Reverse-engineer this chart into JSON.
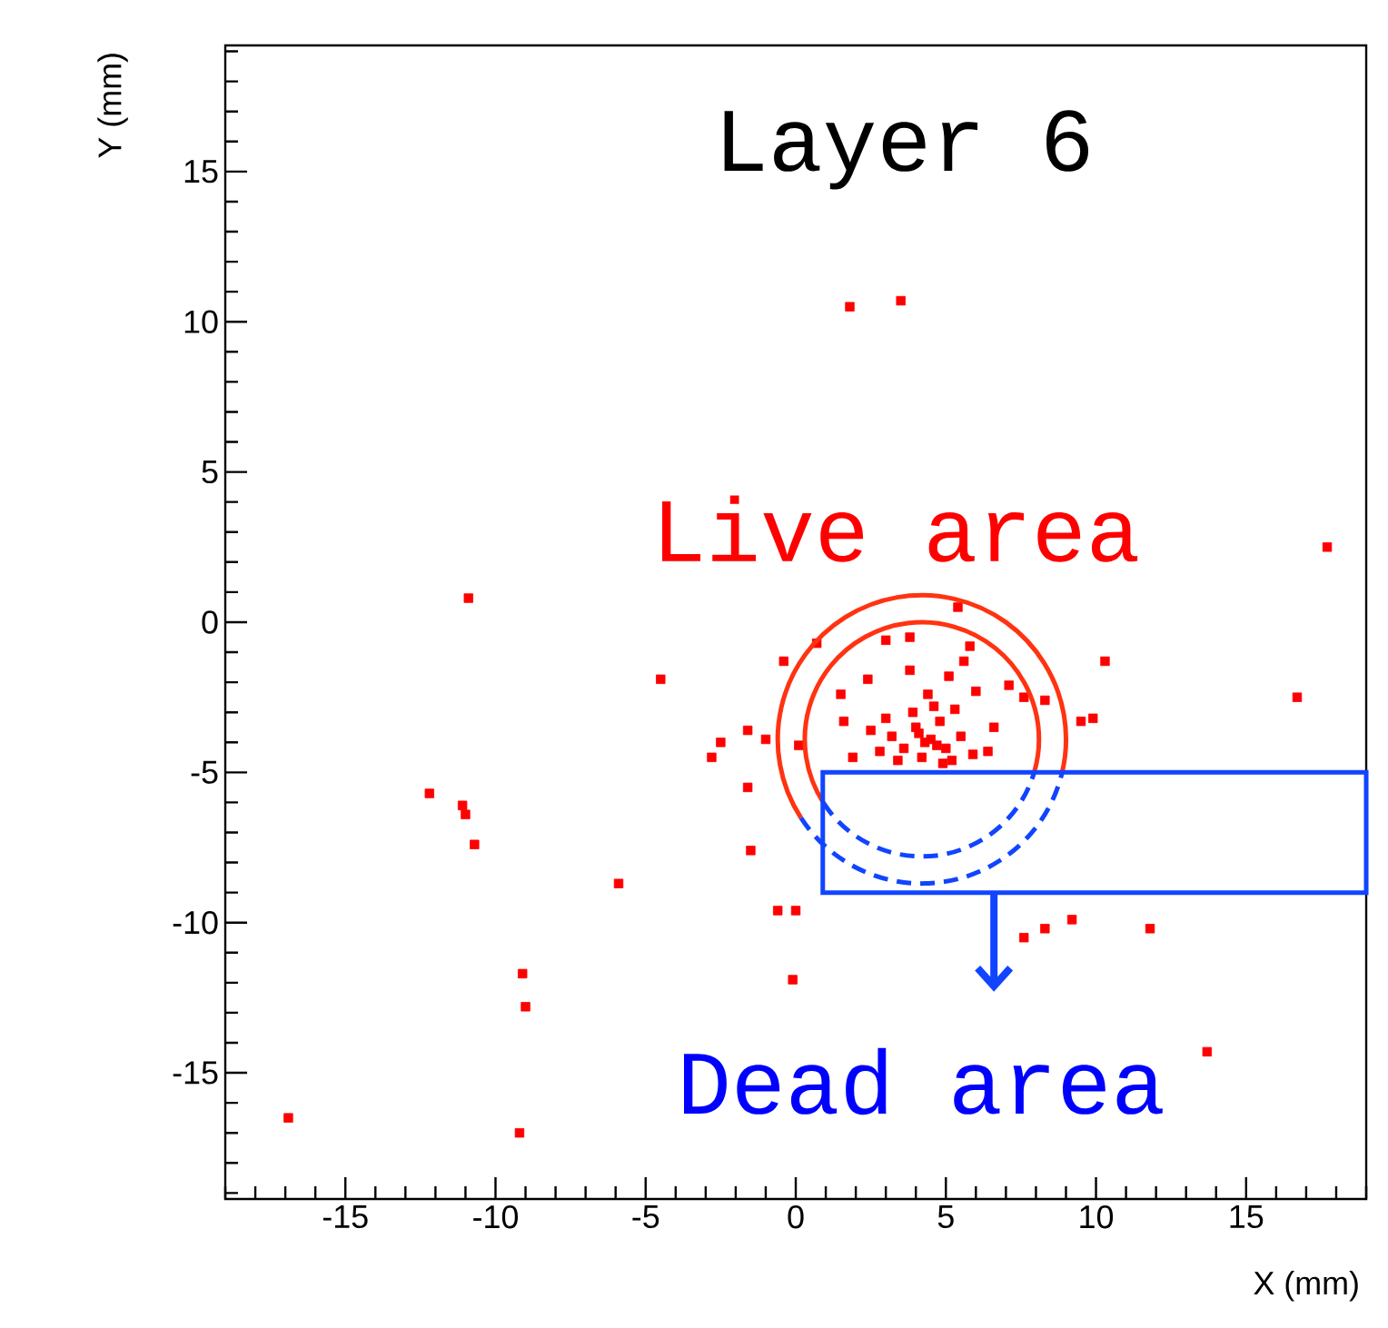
{
  "chart_data": {
    "type": "scatter",
    "title": "Layer 6",
    "xlabel": "X (mm)",
    "ylabel": "Y (mm)",
    "annotations": [
      "Live area",
      "Dead area"
    ],
    "x": [
      -10.9,
      1.8,
      3.5,
      -4.5,
      -12.2,
      -11.1,
      -11.0,
      -10.7,
      -5.9,
      -9.1,
      -9.0,
      -16.9,
      -9.2,
      17.7,
      16.7,
      7.6,
      8.3,
      9.2,
      11.8,
      13.7,
      -0.1,
      -0.6,
      0.0,
      5.4,
      0.7,
      3.0,
      3.8,
      5.8,
      -0.4,
      10.3,
      9.9,
      9.5,
      -2.8,
      -2.5,
      -1.6,
      -1.0,
      -1.6,
      0.1,
      -1.5,
      7.6,
      8.3,
      7.1,
      6.0,
      1.5,
      1.6,
      1.9,
      2.4,
      3.8,
      5.1,
      5.6,
      4.5,
      4.0,
      5.0,
      3.6,
      4.8,
      5.5,
      4.2,
      3.2,
      4.6,
      5.9,
      3.9,
      4.3,
      5.2,
      3.4,
      6.4,
      2.8,
      4.4,
      5.3,
      3.0,
      6.6,
      2.5,
      4.9,
      4.1,
      4.7
    ],
    "values": [
      0.8,
      10.5,
      10.7,
      -1.9,
      -5.7,
      -6.1,
      -6.4,
      -7.4,
      -8.7,
      -11.7,
      -12.8,
      -16.5,
      -17.0,
      2.5,
      -2.5,
      -10.5,
      -10.2,
      -9.9,
      -10.2,
      -14.3,
      -11.9,
      -9.6,
      -9.6,
      0.5,
      -0.7,
      -0.6,
      -0.5,
      -0.8,
      -1.3,
      -1.3,
      -3.2,
      -3.3,
      -4.5,
      -4.0,
      -3.6,
      -3.9,
      -5.5,
      -4.1,
      -7.6,
      -2.5,
      -2.6,
      -2.1,
      -2.3,
      -2.4,
      -3.3,
      -4.5,
      -1.9,
      -1.6,
      -1.8,
      -1.3,
      -3.9,
      -3.5,
      -4.2,
      -4.2,
      -3.3,
      -3.8,
      -4.5,
      -3.8,
      -2.8,
      -4.4,
      -3.0,
      -4.0,
      -4.6,
      -4.6,
      -4.3,
      -4.3,
      -2.4,
      -2.9,
      -3.2,
      -3.5,
      -3.6,
      -4.7,
      -3.7,
      -4.1
    ],
    "color": "#ff0000",
    "marker": "square",
    "grid": false,
    "xlim": [
      -19,
      19
    ],
    "ylim": [
      -19.2,
      19.2
    ],
    "xticks": [
      {
        "value": -19,
        "label": null
      },
      {
        "value": -18,
        "label": null
      },
      {
        "value": -17,
        "label": null
      },
      {
        "value": -16,
        "label": null
      },
      -15,
      {
        "value": -14,
        "label": null
      },
      {
        "value": -13,
        "label": null
      },
      {
        "value": -12,
        "label": null
      },
      {
        "value": -11,
        "label": null
      },
      -10,
      {
        "value": -9,
        "label": null
      },
      {
        "value": -8,
        "label": null
      },
      {
        "value": -7,
        "label": null
      },
      {
        "value": -6,
        "label": null
      },
      -5,
      {
        "value": -4,
        "label": null
      },
      {
        "value": -3,
        "label": null
      },
      {
        "value": -2,
        "label": null
      },
      {
        "value": -1,
        "label": null
      },
      0,
      {
        "value": 1,
        "label": null
      },
      {
        "value": 2,
        "label": null
      },
      {
        "value": 3,
        "label": null
      },
      {
        "value": 4,
        "label": null
      },
      5,
      {
        "value": 6,
        "label": null
      },
      {
        "value": 7,
        "label": null
      },
      {
        "value": 8,
        "label": null
      },
      {
        "value": 9,
        "label": null
      },
      10,
      {
        "value": 11,
        "label": null
      },
      {
        "value": 12,
        "label": null
      },
      {
        "value": 13,
        "label": null
      },
      {
        "value": 14,
        "label": null
      },
      15,
      {
        "value": 16,
        "label": null
      },
      {
        "value": 17,
        "label": null
      },
      {
        "value": 18,
        "label": null
      },
      {
        "value": 19,
        "label": null
      }
    ],
    "yticks": [
      {
        "value": -19,
        "label": null
      },
      {
        "value": -18,
        "label": null
      },
      {
        "value": -17,
        "label": null
      },
      {
        "value": -16,
        "label": null
      },
      -15,
      {
        "value": -14,
        "label": null
      },
      {
        "value": -13,
        "label": null
      },
      {
        "value": -12,
        "label": null
      },
      {
        "value": -11,
        "label": null
      },
      -10,
      {
        "value": -9,
        "label": null
      },
      {
        "value": -8,
        "label": null
      },
      {
        "value": -7,
        "label": null
      },
      {
        "value": -6,
        "label": null
      },
      -5,
      {
        "value": -4,
        "label": null
      },
      {
        "value": -3,
        "label": null
      },
      {
        "value": -2,
        "label": null
      },
      {
        "value": -1,
        "label": null
      },
      0,
      {
        "value": 1,
        "label": null
      },
      {
        "value": 2,
        "label": null
      },
      {
        "value": 3,
        "label": null
      },
      {
        "value": 4,
        "label": null
      },
      5,
      {
        "value": 6,
        "label": null
      },
      {
        "value": 7,
        "label": null
      },
      {
        "value": 8,
        "label": null
      },
      {
        "value": 9,
        "label": null
      },
      10,
      {
        "value": 11,
        "label": null
      },
      {
        "value": 12,
        "label": null
      },
      {
        "value": 13,
        "label": null
      },
      {
        "value": 14,
        "label": null
      },
      15,
      {
        "value": 16,
        "label": null
      },
      {
        "value": 17,
        "label": null
      },
      {
        "value": 18,
        "label": null
      },
      {
        "value": 19,
        "label": null
      }
    ]
  }
}
